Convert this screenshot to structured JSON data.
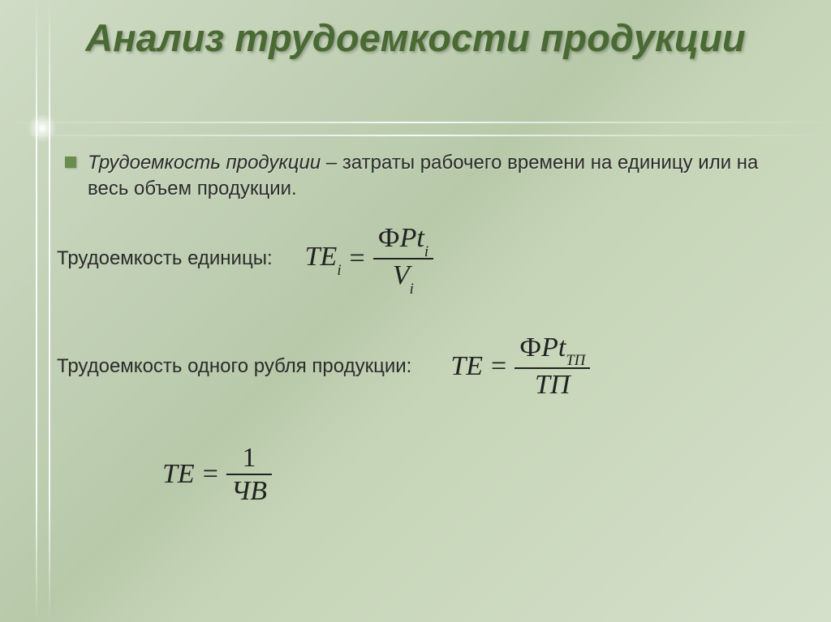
{
  "slide": {
    "title": "Анализ трудоемкости продукции",
    "title_color": "#4a6a33",
    "background_gradient": [
      "#d0dcc6",
      "#b8c9aa",
      "#c5d4b6",
      "#d5e0cb"
    ],
    "bullet_color": "#6a8c4f",
    "text_color": "#2b2b2b",
    "formula_color": "#222222",
    "title_fontsize": 47,
    "body_fontsize": 24,
    "formula_fontsize": 34
  },
  "definition": {
    "term": "Трудоемкость продукции",
    "dash": " – ",
    "body": "затраты рабочего времени на единицу или на весь объем продукции."
  },
  "block1": {
    "label": "Трудоемкость единицы:",
    "formula": {
      "lhs_base": "ТЕ",
      "lhs_sub": "i",
      "eq": "=",
      "num_a": "Ф",
      "num_b": "Р",
      "num_c": "t",
      "num_sub": "i",
      "den_base": "V",
      "den_sub": "i"
    }
  },
  "block2": {
    "label": "Трудоемкость одного рубля продукции:",
    "formula": {
      "lhs": "ТЕ",
      "eq": "=",
      "num_a": "Ф",
      "num_b": "Р",
      "num_c": "t",
      "num_sub": "ТП",
      "den": "ТП"
    }
  },
  "block3": {
    "formula": {
      "lhs": "ТЕ",
      "eq": "=",
      "num": "1",
      "den": "ЧВ"
    }
  }
}
